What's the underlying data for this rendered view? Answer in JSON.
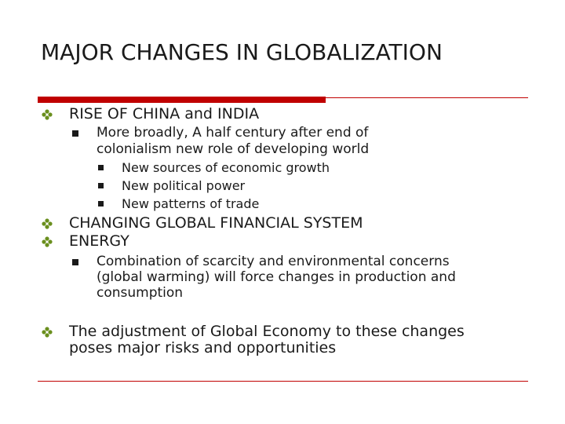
{
  "title": "MAJOR CHANGES IN GLOBALIZATION",
  "bullets": {
    "china_india": "RISE OF CHINA and INDIA",
    "broadly_line1": "More broadly, A half century after end of",
    "broadly_line2": "colonialism new role of developing world",
    "growth": "New sources of economic growth",
    "political": "New political power",
    "trade": "New patterns of trade",
    "financial": "CHANGING GLOBAL FINANCIAL SYSTEM",
    "energy": "ENERGY",
    "combo_line1": "Combination of scarcity and environmental concerns",
    "combo_line2": "(global warming) will force changes in production and",
    "combo_line3": "consumption",
    "adjust_line1": "The adjustment of Global Economy to these changes",
    "adjust_line2": "poses major risks and opportunities"
  },
  "icons": {
    "level1": "diamond-bullet-icon",
    "level2": "square-bullet-icon",
    "level3": "square-bullet-icon"
  },
  "colors": {
    "accent": "#c00000",
    "text": "#1a1a1a",
    "background": "#ffffff"
  }
}
